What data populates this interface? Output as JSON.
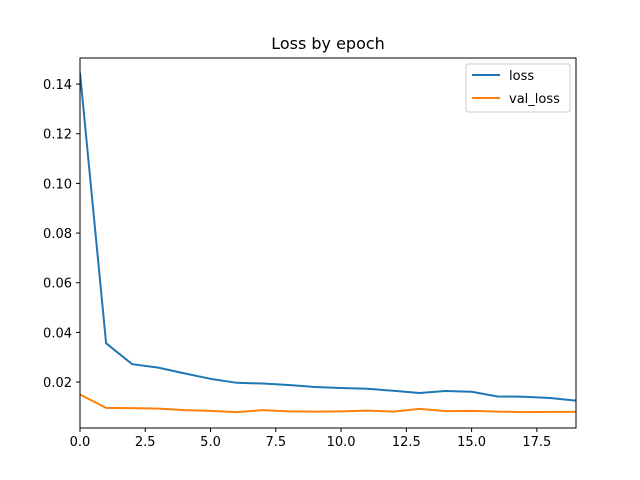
{
  "chart_data": {
    "type": "line",
    "title": "Loss by epoch",
    "xlabel": "",
    "ylabel": "",
    "xlim": [
      0,
      19
    ],
    "ylim": [
      0.0015,
      0.1505
    ],
    "xticks": [
      0.0,
      2.5,
      5.0,
      7.5,
      10.0,
      12.5,
      15.0,
      17.5
    ],
    "xtick_labels": [
      "0.0",
      "2.5",
      "5.0",
      "7.5",
      "10.0",
      "12.5",
      "15.0",
      "17.5"
    ],
    "yticks": [
      0.02,
      0.04,
      0.06,
      0.08,
      0.1,
      0.12,
      0.14
    ],
    "ytick_labels": [
      "0.02",
      "0.04",
      "0.06",
      "0.08",
      "0.10",
      "0.12",
      "0.14"
    ],
    "grid": false,
    "legend_position": "top-right",
    "x": [
      0,
      1,
      2,
      3,
      4,
      5,
      6,
      7,
      8,
      9,
      10,
      11,
      12,
      13,
      14,
      15,
      16,
      17,
      18,
      19
    ],
    "series": [
      {
        "name": "loss",
        "color": "#1f77b4",
        "values": [
          0.1445,
          0.0356,
          0.0272,
          0.0258,
          0.0235,
          0.0213,
          0.0197,
          0.0194,
          0.0188,
          0.018,
          0.0176,
          0.0173,
          0.0165,
          0.0156,
          0.0164,
          0.0161,
          0.0142,
          0.0141,
          0.0136,
          0.0125
        ]
      },
      {
        "name": "val_loss",
        "color": "#ff7f0e",
        "values": [
          0.015,
          0.0096,
          0.0095,
          0.0093,
          0.0087,
          0.0084,
          0.0079,
          0.0087,
          0.0082,
          0.0081,
          0.0082,
          0.0085,
          0.0081,
          0.0092,
          0.0083,
          0.0084,
          0.0081,
          0.0079,
          0.008,
          0.008
        ]
      }
    ]
  }
}
